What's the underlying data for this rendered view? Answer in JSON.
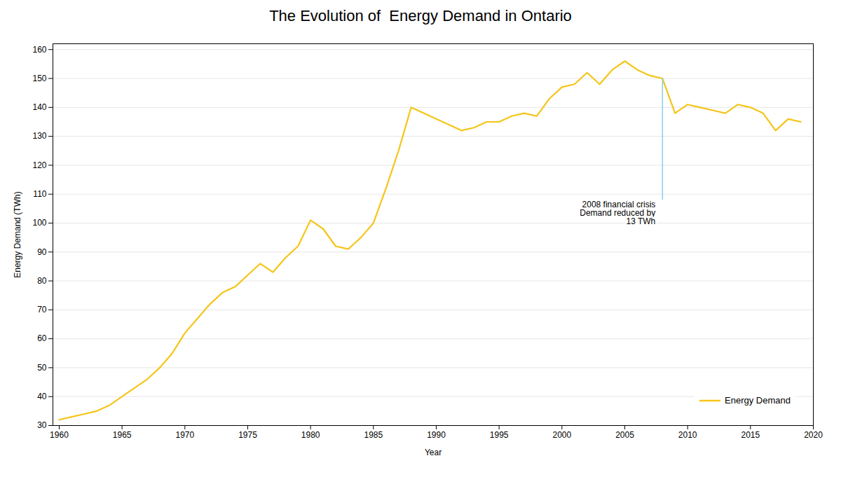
{
  "chart_data": {
    "type": "line",
    "title": "The Evolution of  Energy Demand in Ontario",
    "xlabel": "Year",
    "ylabel": "Energy Demand (TWh)",
    "x": [
      1960,
      1961,
      1962,
      1963,
      1964,
      1965,
      1966,
      1967,
      1968,
      1969,
      1970,
      1971,
      1972,
      1973,
      1974,
      1975,
      1976,
      1977,
      1978,
      1979,
      1980,
      1981,
      1982,
      1983,
      1984,
      1985,
      1986,
      1987,
      1988,
      1989,
      1990,
      1991,
      1992,
      1993,
      1994,
      1995,
      1996,
      1997,
      1998,
      1999,
      2000,
      2001,
      2002,
      2003,
      2004,
      2005,
      2006,
      2007,
      2008,
      2009,
      2010,
      2011,
      2012,
      2013,
      2014,
      2015,
      2016,
      2017,
      2018,
      2019
    ],
    "series": [
      {
        "name": "Energy Demand",
        "color": "#f5c518",
        "values": [
          32,
          33,
          34,
          35,
          37,
          40,
          43,
          46,
          50,
          55,
          62,
          67,
          72,
          76,
          78,
          82,
          86,
          83,
          88,
          92,
          101,
          98,
          92,
          91,
          95,
          100,
          112,
          125,
          140,
          138,
          136,
          134,
          132,
          133,
          135,
          135,
          137,
          138,
          137,
          143,
          147,
          148,
          152,
          148,
          153,
          156,
          153,
          151,
          150,
          138,
          141,
          140,
          139,
          138,
          141,
          140,
          138,
          132,
          136,
          135
        ]
      }
    ],
    "xlim": [
      1959.5,
      2020
    ],
    "xticks": [
      1960,
      1965,
      1970,
      1975,
      1980,
      1985,
      1990,
      1995,
      2000,
      2005,
      2010,
      2015,
      2020
    ],
    "ylim": [
      30,
      162
    ],
    "yticks": [
      30,
      40,
      50,
      60,
      70,
      80,
      90,
      100,
      110,
      120,
      130,
      140,
      150,
      160
    ],
    "grid": "y",
    "legend": "lower right",
    "annotations": [
      {
        "text": "2008 financial crisis\nDemand reduced by\n13 TWh",
        "x": 2008,
        "y1": 108,
        "y2": 150,
        "color": "#87ceeb"
      }
    ]
  }
}
